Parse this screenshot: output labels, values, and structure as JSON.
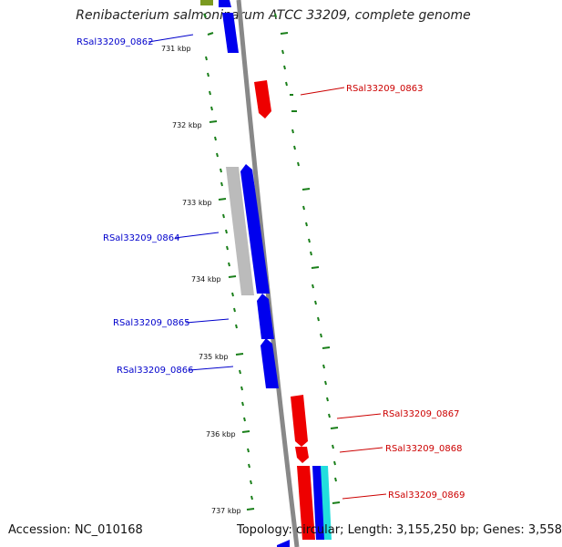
{
  "title": "Renibacterium salmoninarum ATCC 33209, complete genome",
  "footer": {
    "accession": "Accession: NC_010168",
    "summary": "Topology: circular; Length: 3,155,250 bp; Genes: 3,558"
  },
  "ticks": [
    "731 kbp",
    "732 kbp",
    "733 kbp",
    "734 kbp",
    "735 kbp",
    "736 kbp",
    "737 kbp"
  ],
  "genes": {
    "left": [
      "RSal33209_0862",
      "RSal33209_0864",
      "RSal33209_0865",
      "RSal33209_0866"
    ],
    "right": [
      "RSal33209_0863",
      "RSal33209_0867",
      "RSal33209_0868",
      "RSal33209_0869"
    ]
  },
  "colors": {
    "forward": "#0000ee",
    "reverse": "#ee0000",
    "gc_skew": "#1a7f1a",
    "backbone": "#888888",
    "gray_feature": "#bbbbbb",
    "cyan_feature": "#22dddd",
    "olive_feature": "#7a9a20"
  }
}
